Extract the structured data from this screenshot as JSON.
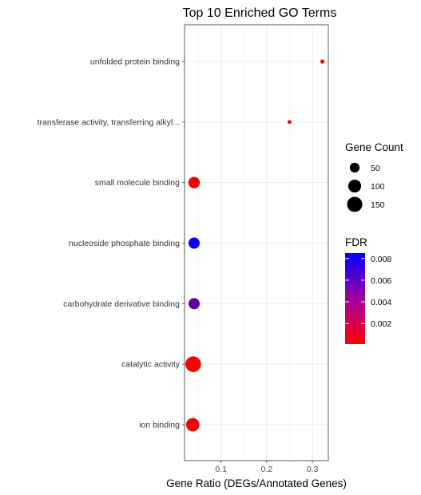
{
  "chart_data": {
    "type": "scatter",
    "title": "Top 10 Enriched GO Terms",
    "xlabel": "Gene Ratio (DEGs/Annotated Genes)",
    "ylabel": "",
    "xlim": [
      0.02,
      0.335
    ],
    "xticks": [
      0.1,
      0.2,
      0.3
    ],
    "xtick_labels": [
      "0.1",
      "0.2",
      "0.3"
    ],
    "grid": true,
    "categories": [
      "ion binding",
      "catalytic activity",
      "carbohydrate derivative binding",
      "nucleoside phosphate binding",
      "small molecule binding",
      "transferase activity, transferring alkyl...",
      "unfolded protein binding"
    ],
    "points": [
      {
        "term": "ion binding",
        "gene_ratio": 0.038,
        "gene_count": 110,
        "fdr": 0.0003
      },
      {
        "term": "catalytic activity",
        "gene_ratio": 0.039,
        "gene_count": 160,
        "fdr": 0.0001
      },
      {
        "term": "carbohydrate derivative binding",
        "gene_ratio": 0.041,
        "gene_count": 70,
        "fdr": 0.0055
      },
      {
        "term": "nucleoside phosphate binding",
        "gene_ratio": 0.041,
        "gene_count": 70,
        "fdr": 0.0082
      },
      {
        "term": "small molecule binding",
        "gene_ratio": 0.041,
        "gene_count": 75,
        "fdr": 0.0003
      },
      {
        "term": "transferase activity, transferring alkyl...",
        "gene_ratio": 0.25,
        "gene_count": 2,
        "fdr": 0.0003
      },
      {
        "term": "unfolded protein binding",
        "gene_ratio": 0.322,
        "gene_count": 3,
        "fdr": 0.0003
      }
    ],
    "size_legend": {
      "title": "Gene Count",
      "values": [
        50,
        100,
        150
      ],
      "labels": [
        "50",
        "100",
        "150"
      ]
    },
    "color_legend": {
      "title": "FDR",
      "range": [
        0.0001,
        0.0085
      ],
      "ticks": [
        0.002,
        0.004,
        0.006,
        0.008
      ],
      "tick_labels": [
        "0.002",
        "0.004",
        "0.006",
        "0.008"
      ],
      "low_color": "#FF0000",
      "high_color": "#0000FF"
    },
    "legend_position": "right"
  }
}
